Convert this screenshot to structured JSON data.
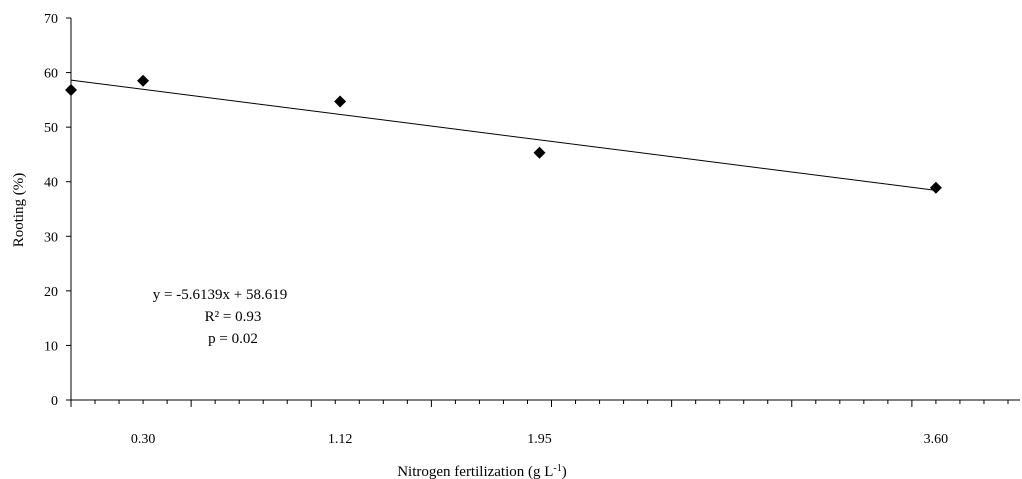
{
  "chart_data": {
    "type": "scatter",
    "xlabel_main": "Nitrogen fertilization (g L",
    "xlabel_sup": "-1",
    "xlabel_tail": ")",
    "ylabel": "Rooting (%)",
    "ylim": [
      0,
      70
    ],
    "yticks": [
      "0",
      "10",
      "20",
      "30",
      "40",
      "50",
      "60",
      "70"
    ],
    "xticks_labeled": [
      {
        "value": 0.3,
        "label": "0.30"
      },
      {
        "value": 1.12,
        "label": "1.12"
      },
      {
        "value": 1.95,
        "label": "1.95"
      },
      {
        "value": 3.6,
        "label": "3.60"
      }
    ],
    "points": [
      {
        "x": 0.0,
        "y": 56.8
      },
      {
        "x": 0.3,
        "y": 58.5
      },
      {
        "x": 1.12,
        "y": 54.7
      },
      {
        "x": 1.95,
        "y": 45.3
      },
      {
        "x": 3.6,
        "y": 38.9
      }
    ],
    "trendline": {
      "slope": -5.6139,
      "intercept": 58.619
    },
    "annotations": {
      "equation": "y = -5.6139x + 58.619",
      "r2": "R² = 0.93",
      "p": "p = 0.02"
    },
    "grid": false,
    "legend": "none"
  }
}
